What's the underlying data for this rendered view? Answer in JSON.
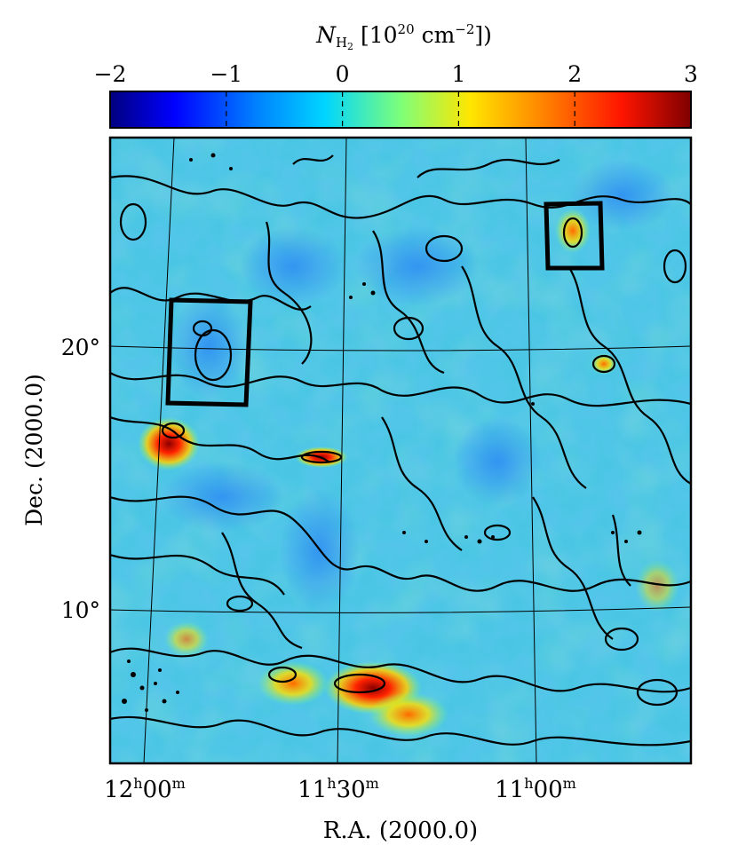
{
  "colorbar": {
    "label": {
      "base": "N",
      "sub": "H",
      "sub2": "2",
      "bracket_open": " [10",
      "exp": "20",
      "unit": " cm",
      "unit_exp": "−2",
      "bracket_close": "])"
    },
    "ticks": [
      "−2",
      "−1",
      "0",
      "1",
      "2",
      "3"
    ],
    "tick_values": [
      -2,
      -1,
      0,
      1,
      2,
      3
    ],
    "range": [
      -2,
      3
    ],
    "colormap": "jet"
  },
  "axes": {
    "xlabel": "R.A. (2000.0)",
    "ylabel": "Dec. (2000.0)",
    "x_ticks": [
      {
        "h": "12",
        "m": "00"
      },
      {
        "h": "11",
        "m": "30"
      },
      {
        "h": "11",
        "m": "00"
      }
    ],
    "y_ticks": [
      "20°",
      "10°"
    ]
  },
  "map": {
    "description_colors": {
      "background": "#49c7e6",
      "low": "#3aa6ee",
      "high": "#e8281a",
      "peak": "#8b0000"
    },
    "boxes": [
      {
        "name": "box-left",
        "label": ""
      },
      {
        "name": "box-right",
        "label": ""
      }
    ]
  }
}
